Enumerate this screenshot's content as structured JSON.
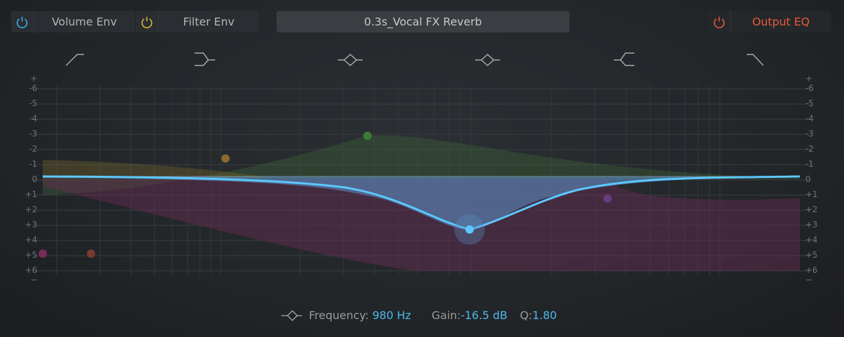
{
  "header": {
    "volume_env": {
      "label": "Volume Env",
      "icon": "power-icon",
      "color": "#3fb0e6"
    },
    "filter_env": {
      "label": "Filter Env",
      "icon": "power-icon",
      "color": "#d8b93a"
    },
    "preset": "0.3s_Vocal FX Reverb",
    "output_eq": {
      "label": "Output EQ",
      "icon": "power-icon",
      "color": "#e8593a"
    }
  },
  "band_icons": [
    "low-cut-icon",
    "low-shelf-icon",
    "peak-icon",
    "peak-icon",
    "high-shelf-icon",
    "high-cut-icon"
  ],
  "axis": {
    "left": [
      "+",
      "-6",
      "-5",
      "-4",
      "-3",
      "-2",
      "-1",
      "0",
      "+1",
      "+2",
      "+3",
      "+4",
      "+5",
      "+6",
      "−"
    ],
    "right": [
      "+",
      "-6",
      "-5",
      "-4",
      "-3",
      "-2",
      "-1",
      "0",
      "+1",
      "+2",
      "+3",
      "+4",
      "+5",
      "+6",
      "−"
    ]
  },
  "status": {
    "icon": "peak-icon",
    "frequency_label": "Frequency:",
    "frequency": "980 Hz",
    "gain_label": "Gain:",
    "gain": "-16.5 dB",
    "q_label": "Q:",
    "q": "1.80"
  },
  "colors": {
    "curve": "#5cc8ff",
    "accent": "#4fb8ec"
  }
}
